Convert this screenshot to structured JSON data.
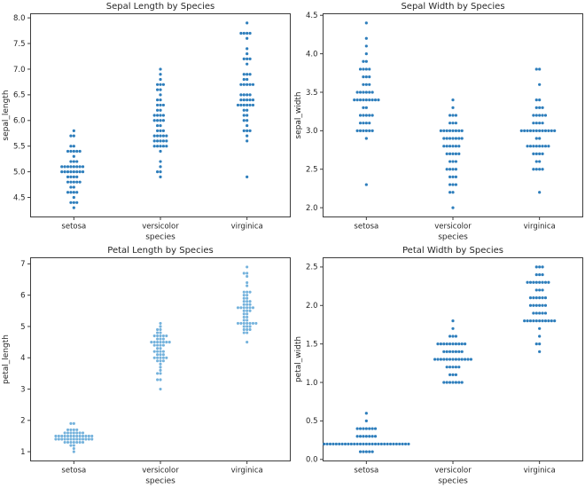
{
  "figure": {
    "background": "#ffffff",
    "text_color": "#262626",
    "spine_color": "#3c3c3c",
    "dot_color_default": "#2e7ebc",
    "dot_color_light": "#74b2dc"
  },
  "chart_data": {
    "type": "scatter",
    "variant": "swarm",
    "dataset": "iris",
    "categories": [
      "setosa",
      "versicolor",
      "virginica"
    ],
    "xlabel": "species",
    "plots": [
      {
        "title": "Sepal Length by Species",
        "ylabel": "sepal_length",
        "xlabel": "species",
        "measure": "sepal_length",
        "ylim": [
          4.12,
          8.08
        ],
        "yticks": [
          4.5,
          5.0,
          5.5,
          6.0,
          6.5,
          7.0,
          7.5,
          8.0
        ],
        "ytick_labels": [
          "4.5",
          "5.0",
          "5.5",
          "6.0",
          "6.5",
          "7.0",
          "7.5",
          "8.0"
        ],
        "dot_color": "#2e7ebc",
        "dot_radius": 1.6
      },
      {
        "title": "Sepal Width by Species",
        "ylabel": "sepal_width",
        "xlabel": "species",
        "measure": "sepal_width",
        "ylim": [
          1.88,
          4.52
        ],
        "yticks": [
          2.0,
          2.5,
          3.0,
          3.5,
          4.0,
          4.5
        ],
        "ytick_labels": [
          "2.0",
          "2.5",
          "3.0",
          "3.5",
          "4.0",
          "4.5"
        ],
        "dot_color": "#2e7ebc",
        "dot_radius": 1.6
      },
      {
        "title": "Petal Length by Species",
        "ylabel": "petal_length",
        "xlabel": "species",
        "measure": "petal_length",
        "ylim": [
          0.705,
          7.195
        ],
        "yticks": [
          1,
          2,
          3,
          4,
          5,
          6,
          7
        ],
        "ytick_labels": [
          "1",
          "2",
          "3",
          "4",
          "5",
          "6",
          "7"
        ],
        "dot_color": "#74b2dc",
        "dot_radius": 1.55
      },
      {
        "title": "Petal Width by Species",
        "ylabel": "petal_width",
        "xlabel": "species",
        "measure": "petal_width",
        "ylim": [
          -0.02,
          2.62
        ],
        "yticks": [
          0.0,
          0.5,
          1.0,
          1.5,
          2.0,
          2.5
        ],
        "ytick_labels": [
          "0.0",
          "0.5",
          "1.0",
          "1.5",
          "2.0",
          "2.5"
        ],
        "dot_color": "#2e7ebc",
        "dot_radius": 1.6
      }
    ],
    "values": {
      "sepal_length": {
        "setosa": [
          5.1,
          4.9,
          4.7,
          4.6,
          5.0,
          5.4,
          4.6,
          5.0,
          4.4,
          4.9,
          5.4,
          4.8,
          4.8,
          4.3,
          5.8,
          5.7,
          5.4,
          5.1,
          5.7,
          5.1,
          5.4,
          5.1,
          4.6,
          5.1,
          4.8,
          5.0,
          5.0,
          5.2,
          5.2,
          4.7,
          4.8,
          5.4,
          5.2,
          5.5,
          4.9,
          5.0,
          5.5,
          4.9,
          4.4,
          5.1,
          5.0,
          4.5,
          4.4,
          5.0,
          5.1,
          4.8,
          5.1,
          4.6,
          5.3,
          5.0
        ],
        "versicolor": [
          7.0,
          6.4,
          6.9,
          5.5,
          6.5,
          5.7,
          6.3,
          4.9,
          6.6,
          5.2,
          5.0,
          5.9,
          6.0,
          6.1,
          5.6,
          6.7,
          5.6,
          5.8,
          6.2,
          5.6,
          5.9,
          6.1,
          6.3,
          6.1,
          6.4,
          6.6,
          6.8,
          6.7,
          6.0,
          5.7,
          5.5,
          5.5,
          5.8,
          6.0,
          5.4,
          6.0,
          6.7,
          6.3,
          5.6,
          5.5,
          5.5,
          6.1,
          5.8,
          5.0,
          5.6,
          5.7,
          5.7,
          6.2,
          5.1,
          5.7
        ],
        "virginica": [
          6.3,
          5.8,
          7.1,
          6.3,
          6.5,
          7.6,
          4.9,
          7.3,
          6.7,
          7.2,
          6.5,
          6.4,
          6.8,
          5.7,
          5.8,
          6.4,
          6.5,
          7.7,
          7.7,
          6.0,
          6.9,
          5.6,
          7.7,
          6.3,
          6.7,
          7.2,
          6.2,
          6.1,
          6.4,
          7.2,
          7.4,
          7.9,
          6.4,
          6.3,
          6.1,
          7.7,
          6.3,
          6.4,
          6.0,
          6.9,
          6.7,
          6.9,
          5.8,
          6.8,
          6.7,
          6.7,
          6.3,
          6.5,
          6.2,
          5.9
        ]
      },
      "sepal_width": {
        "setosa": [
          3.5,
          3.0,
          3.2,
          3.1,
          3.6,
          3.9,
          3.4,
          3.4,
          2.9,
          3.1,
          3.7,
          3.4,
          3.0,
          3.0,
          4.0,
          4.4,
          3.9,
          3.5,
          3.8,
          3.8,
          3.4,
          3.7,
          3.6,
          3.3,
          3.4,
          3.0,
          3.4,
          3.5,
          3.4,
          3.2,
          3.1,
          3.4,
          4.1,
          4.2,
          3.1,
          3.2,
          3.5,
          3.6,
          3.0,
          3.4,
          3.5,
          2.3,
          3.2,
          3.5,
          3.8,
          3.0,
          3.8,
          3.2,
          3.7,
          3.3
        ],
        "versicolor": [
          3.2,
          3.2,
          3.1,
          2.3,
          2.8,
          2.8,
          3.3,
          2.4,
          2.9,
          2.7,
          2.0,
          3.0,
          2.2,
          2.9,
          2.9,
          3.1,
          3.0,
          2.7,
          2.2,
          2.5,
          3.2,
          2.8,
          2.5,
          2.8,
          2.9,
          3.0,
          2.8,
          3.0,
          2.9,
          2.6,
          2.4,
          2.4,
          2.7,
          2.7,
          3.0,
          3.4,
          3.1,
          2.3,
          3.0,
          2.5,
          2.6,
          3.0,
          2.6,
          2.3,
          2.7,
          3.0,
          2.9,
          2.9,
          2.5,
          2.8
        ],
        "virginica": [
          3.3,
          2.7,
          3.0,
          2.9,
          3.0,
          3.0,
          2.5,
          2.9,
          2.5,
          3.6,
          3.2,
          2.7,
          3.0,
          2.5,
          2.8,
          3.2,
          3.0,
          3.8,
          2.6,
          2.2,
          3.2,
          2.8,
          2.8,
          2.7,
          3.3,
          3.2,
          2.8,
          3.0,
          2.8,
          3.0,
          2.8,
          3.8,
          2.8,
          2.8,
          2.6,
          3.0,
          3.4,
          3.1,
          3.0,
          3.1,
          3.1,
          3.1,
          2.7,
          3.2,
          3.3,
          3.0,
          2.5,
          3.0,
          3.4,
          3.0
        ]
      },
      "petal_length": {
        "setosa": [
          1.4,
          1.4,
          1.3,
          1.5,
          1.4,
          1.7,
          1.4,
          1.5,
          1.4,
          1.5,
          1.5,
          1.6,
          1.4,
          1.1,
          1.2,
          1.5,
          1.3,
          1.4,
          1.7,
          1.5,
          1.7,
          1.5,
          1.0,
          1.7,
          1.9,
          1.6,
          1.6,
          1.5,
          1.4,
          1.6,
          1.6,
          1.5,
          1.5,
          1.4,
          1.5,
          1.2,
          1.3,
          1.4,
          1.3,
          1.5,
          1.3,
          1.3,
          1.3,
          1.6,
          1.9,
          1.4,
          1.6,
          1.4,
          1.5,
          1.4
        ],
        "versicolor": [
          4.7,
          4.5,
          4.9,
          4.0,
          4.6,
          4.5,
          4.7,
          3.3,
          4.6,
          3.9,
          3.5,
          4.2,
          4.0,
          4.7,
          3.6,
          4.4,
          4.5,
          4.1,
          4.5,
          3.9,
          4.8,
          4.0,
          4.9,
          4.7,
          4.3,
          4.4,
          4.8,
          5.0,
          4.5,
          3.5,
          3.8,
          3.7,
          3.9,
          5.1,
          4.5,
          4.5,
          4.7,
          4.4,
          4.1,
          4.0,
          4.4,
          4.6,
          4.0,
          3.3,
          4.2,
          4.2,
          4.2,
          4.3,
          3.0,
          4.1
        ],
        "virginica": [
          6.0,
          5.1,
          5.9,
          5.6,
          5.8,
          6.6,
          4.5,
          6.3,
          5.8,
          6.1,
          5.1,
          5.3,
          5.5,
          5.0,
          5.1,
          5.3,
          5.5,
          6.7,
          6.9,
          5.0,
          5.7,
          4.9,
          6.7,
          4.9,
          5.7,
          6.0,
          4.8,
          4.9,
          5.6,
          5.8,
          6.1,
          6.4,
          5.6,
          5.1,
          5.6,
          6.1,
          5.6,
          5.5,
          4.8,
          5.4,
          5.6,
          5.1,
          5.1,
          5.9,
          5.7,
          5.2,
          5.0,
          5.2,
          5.4,
          5.1
        ]
      },
      "petal_width": {
        "setosa": [
          0.2,
          0.2,
          0.2,
          0.2,
          0.2,
          0.4,
          0.3,
          0.2,
          0.2,
          0.1,
          0.2,
          0.2,
          0.1,
          0.1,
          0.2,
          0.4,
          0.4,
          0.3,
          0.3,
          0.3,
          0.2,
          0.4,
          0.2,
          0.5,
          0.2,
          0.2,
          0.4,
          0.2,
          0.2,
          0.2,
          0.2,
          0.4,
          0.1,
          0.2,
          0.2,
          0.2,
          0.2,
          0.1,
          0.2,
          0.2,
          0.3,
          0.3,
          0.2,
          0.6,
          0.4,
          0.3,
          0.2,
          0.2,
          0.2,
          0.2
        ],
        "versicolor": [
          1.4,
          1.5,
          1.5,
          1.3,
          1.5,
          1.3,
          1.6,
          1.0,
          1.3,
          1.4,
          1.0,
          1.5,
          1.0,
          1.4,
          1.3,
          1.4,
          1.5,
          1.0,
          1.5,
          1.1,
          1.8,
          1.3,
          1.5,
          1.2,
          1.3,
          1.4,
          1.4,
          1.7,
          1.5,
          1.0,
          1.1,
          1.0,
          1.2,
          1.6,
          1.5,
          1.6,
          1.5,
          1.3,
          1.3,
          1.3,
          1.2,
          1.4,
          1.2,
          1.0,
          1.3,
          1.2,
          1.3,
          1.3,
          1.1,
          1.3
        ],
        "virginica": [
          2.5,
          1.9,
          2.1,
          1.8,
          2.2,
          2.1,
          1.7,
          1.8,
          1.8,
          2.5,
          2.0,
          1.9,
          2.1,
          2.0,
          2.4,
          2.3,
          1.8,
          2.2,
          2.3,
          1.5,
          2.3,
          2.0,
          2.0,
          1.8,
          2.1,
          1.8,
          1.8,
          1.8,
          2.1,
          1.6,
          1.9,
          2.0,
          2.2,
          1.5,
          1.4,
          2.3,
          2.4,
          1.8,
          1.8,
          2.1,
          2.4,
          2.3,
          1.9,
          2.3,
          2.5,
          2.3,
          1.9,
          2.0,
          2.3,
          1.8
        ]
      }
    }
  }
}
